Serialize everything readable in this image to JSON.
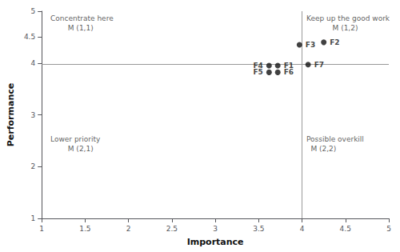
{
  "chart_data": {
    "type": "scatter",
    "x": [
      4.25,
      3.97,
      4.07,
      3.72,
      3.62,
      3.62,
      3.72
    ],
    "values": [
      4.4,
      4.35,
      3.97,
      3.95,
      3.95,
      3.82,
      3.82
    ],
    "labels": [
      "F2",
      "F3",
      "F7",
      "F1",
      "F4",
      "F5",
      "F6"
    ],
    "color": "#111111",
    "xlabel": "Importance",
    "ylabel": "Performance",
    "xlim": [
      1,
      5
    ],
    "ylim": [
      1,
      5
    ],
    "xticks": [
      1,
      1.5,
      2,
      2.5,
      3,
      3.5,
      4,
      4.5,
      5
    ],
    "yticks": [
      1,
      2,
      3,
      4,
      4.5,
      5
    ],
    "crosshair": {
      "x": 4.0,
      "y": 3.97
    },
    "annotations": [
      {
        "text": "Concentrate here",
        "x": 1.1,
        "y": 4.93
      },
      {
        "text": "M (1,1)",
        "x": 1.3,
        "y": 4.75
      },
      {
        "text": "Keep up the good work",
        "x": 4.05,
        "y": 4.93
      },
      {
        "text": "M (1,2)",
        "x": 4.35,
        "y": 4.75
      },
      {
        "text": "Lower priority",
        "x": 1.1,
        "y": 2.6
      },
      {
        "text": "M (2,1)",
        "x": 1.3,
        "y": 2.42
      },
      {
        "text": "Possible overkill",
        "x": 4.05,
        "y": 2.6
      },
      {
        "text": "M (2,2)",
        "x": 4.1,
        "y": 2.42
      }
    ],
    "grid": false
  }
}
